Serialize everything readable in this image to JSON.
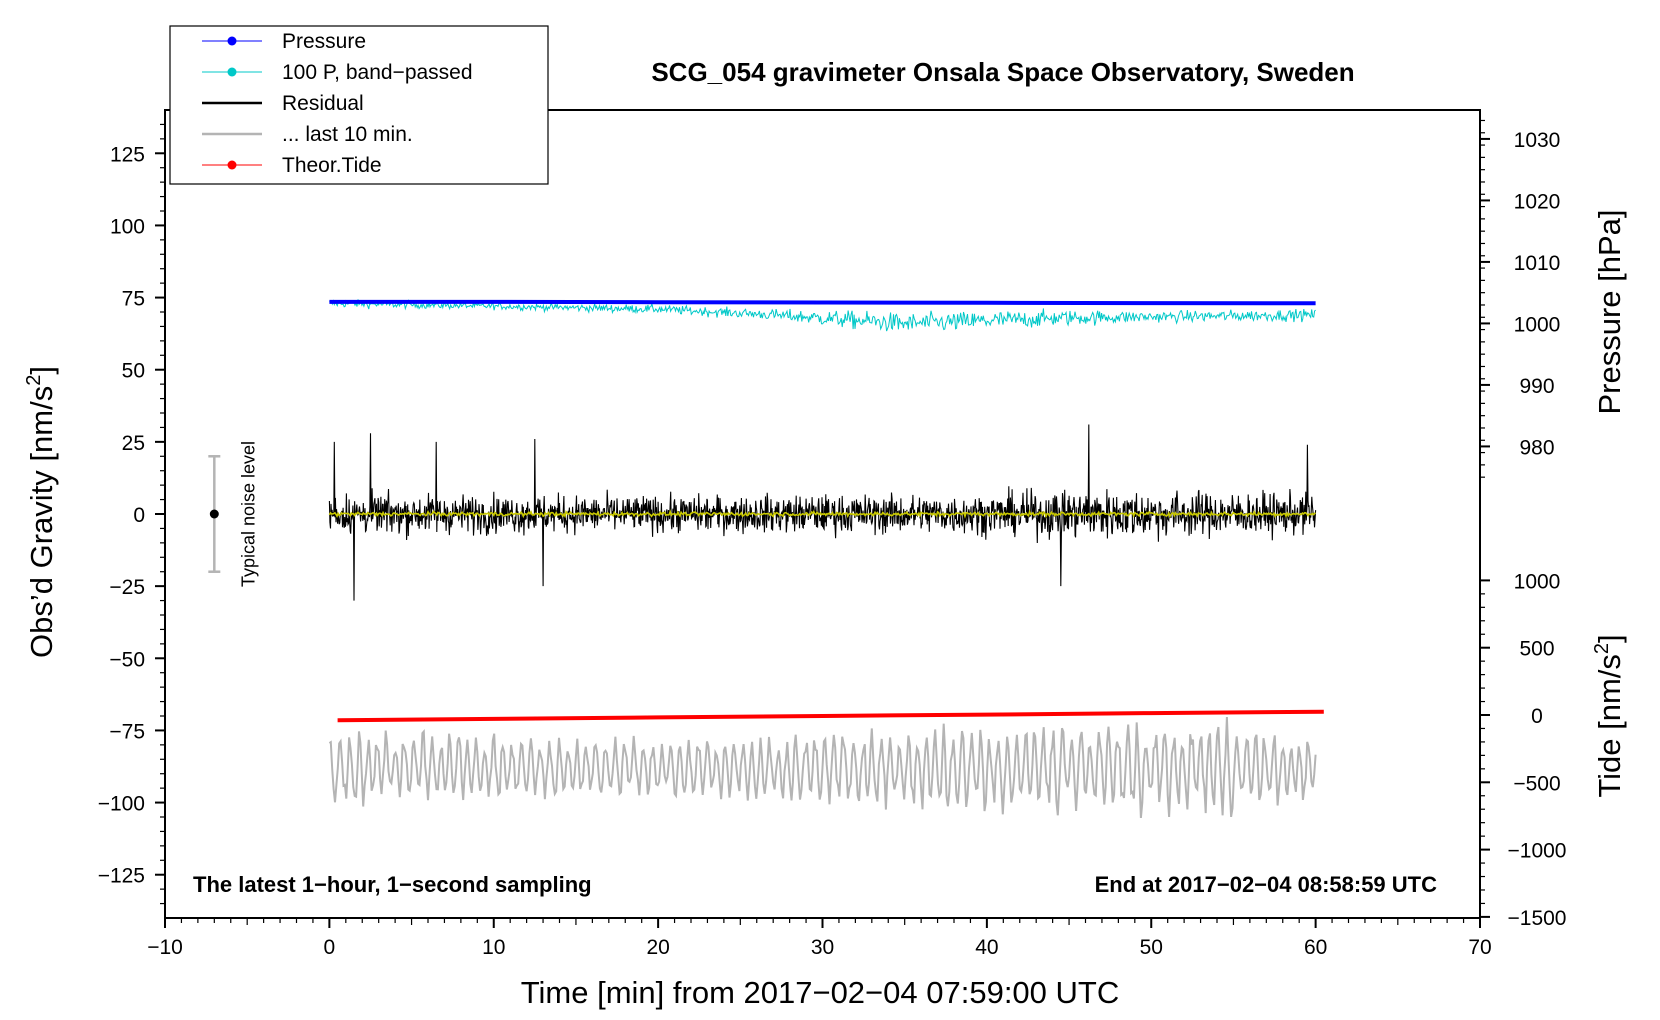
{
  "chart_data": {
    "type": "line",
    "title": "SCG_054 gravimeter Onsala Space Observatory, Sweden",
    "xlabel": "Time [min] from 2017−02−04 07:59:00 UTC",
    "ylabel_left": "Obs’d Gravity [nm/s²]",
    "ylabel_left_main": "Obs’d Gravity [nm/s",
    "ylabel_left_sup": "2",
    "ylabel_left_end": "]",
    "ylabel_right_pressure": "Pressure [hPa]",
    "ylabel_right_tide": "Tide [nm/s²]",
    "ylabel_right_tide_main": "Tide [nm/s",
    "ylabel_right_tide_sup": "2",
    "ylabel_right_tide_end": "]",
    "xlim": [
      -10,
      70
    ],
    "ylim_left": [
      -140,
      140
    ],
    "x_ticks": [
      -10,
      0,
      10,
      20,
      30,
      40,
      50,
      60,
      70
    ],
    "x_tick_labels": [
      "−10",
      "0",
      "10",
      "20",
      "30",
      "40",
      "50",
      "60",
      "70"
    ],
    "y_left_ticks": [
      125,
      100,
      75,
      50,
      25,
      0,
      -25,
      -50,
      -75,
      -100,
      -125
    ],
    "y_left_tick_labels": [
      "125",
      "100",
      "75",
      "50",
      "25",
      "0",
      "−25",
      "−50",
      "−75",
      "−100",
      "−125"
    ],
    "pressure_ticks": [
      1030,
      1020,
      1010,
      1000,
      990,
      980
    ],
    "pressure_tick_labels": [
      "1030",
      "1020",
      "1010",
      "1000",
      "990",
      "980"
    ],
    "tide_ticks": [
      1000,
      500,
      0,
      -500,
      -1000,
      -1500
    ],
    "tide_tick_labels": [
      "1000",
      "500",
      "0",
      "−500",
      "−1000",
      "−1500"
    ],
    "annotation_left": "The latest 1−hour, 1−second sampling",
    "annotation_right": "End at 2017−02−04 08:58:59 UTC",
    "noise_label": "Typical noise level",
    "noise_bar": {
      "x": -7,
      "center": 0,
      "low": -20,
      "high": 20
    },
    "legend": [
      {
        "label": "Pressure",
        "color": "#0000ff",
        "marker": true
      },
      {
        "label": "100 P, band−passed",
        "color": "#00c8c8",
        "marker": true
      },
      {
        "label": "Residual",
        "color": "#000000",
        "marker": false
      },
      {
        "label": "... last 10 min.",
        "color": "#b4b4b4",
        "marker": false
      },
      {
        "label": "Theor.Tide",
        "color": "#ff0000",
        "marker": true
      }
    ],
    "series": [
      {
        "name": "Pressure",
        "color": "#0000ff",
        "axis": "left",
        "x": [
          0,
          10,
          20,
          30,
          40,
          50,
          60
        ],
        "y": [
          73.5,
          73.5,
          73.4,
          73.3,
          73.2,
          73.1,
          73.0
        ],
        "style": "thick"
      },
      {
        "name": "100 P, band−passed",
        "color": "#00c8c8",
        "axis": "left",
        "x_range": [
          0,
          60
        ],
        "base": [
          [
            0,
            73
          ],
          [
            10,
            72
          ],
          [
            20,
            71
          ],
          [
            27,
            69
          ],
          [
            35,
            66
          ],
          [
            45,
            68
          ],
          [
            60,
            69
          ]
        ],
        "amp": [
          [
            0,
            2.5
          ],
          [
            10,
            2
          ],
          [
            26,
            3
          ],
          [
            33,
            6
          ],
          [
            40,
            6
          ],
          [
            50,
            3.5
          ],
          [
            60,
            3.5
          ]
        ],
        "style": "noise"
      },
      {
        "name": "Residual",
        "color": "#000000",
        "axis": "left",
        "x_range": [
          0,
          60
        ],
        "base": [
          [
            0,
            0
          ],
          [
            60,
            0
          ]
        ],
        "amp": [
          [
            0,
            12
          ],
          [
            20,
            11
          ],
          [
            40,
            12
          ],
          [
            46,
            15
          ],
          [
            60,
            12
          ]
        ],
        "peaks": [
          [
            0.3,
            25
          ],
          [
            2.5,
            28
          ],
          [
            6.5,
            25
          ],
          [
            12.5,
            26
          ],
          [
            46.2,
            31
          ],
          [
            44.5,
            -25
          ],
          [
            1.5,
            -30
          ],
          [
            13,
            -25
          ],
          [
            59.5,
            24
          ]
        ],
        "style": "noise"
      },
      {
        "name": "Smoothed residual",
        "color": "#c8c800",
        "axis": "left",
        "x_range": [
          0,
          60
        ],
        "base": [
          [
            0,
            0
          ],
          [
            60,
            0
          ]
        ],
        "amp": [
          [
            0,
            1.2
          ],
          [
            60,
            1.2
          ]
        ],
        "style": "noise"
      },
      {
        "name": "... last 10 min.",
        "color": "#b4b4b4",
        "axis": "left",
        "x_range": [
          0,
          60
        ],
        "base": [
          [
            0,
            -88
          ],
          [
            60,
            -88
          ]
        ],
        "amp": [
          [
            0,
            12
          ],
          [
            20,
            9
          ],
          [
            38,
            13
          ],
          [
            55,
            15
          ],
          [
            60,
            10
          ]
        ],
        "style": "wave"
      },
      {
        "name": "Theor.Tide",
        "color": "#ff0000",
        "axis": "left",
        "x": [
          0.5,
          10,
          20,
          30,
          40,
          50,
          60.5
        ],
        "y": [
          -71.5,
          -71.0,
          -70.5,
          -70.0,
          -69.5,
          -69.0,
          -68.5
        ],
        "style": "thick"
      }
    ]
  }
}
